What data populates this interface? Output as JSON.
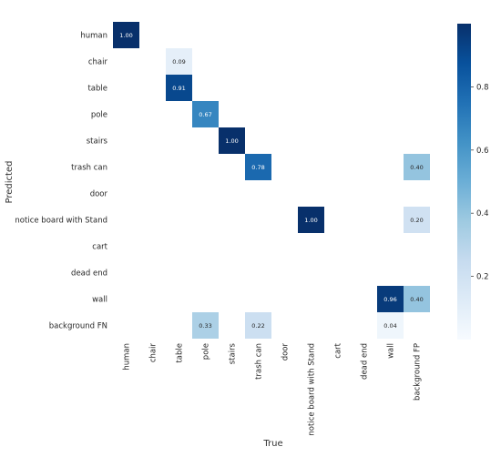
{
  "chart_data": {
    "type": "heatmap",
    "xlabel": "True",
    "ylabel": "Predicted",
    "x_categories": [
      "human",
      "chair",
      "table",
      "pole",
      "stairs",
      "trash can",
      "door",
      "notice board with Stand",
      "cart",
      "dead end",
      "wall",
      "background FP"
    ],
    "y_categories": [
      "human",
      "chair",
      "table",
      "pole",
      "stairs",
      "trash can",
      "door",
      "notice board with Stand",
      "cart",
      "dead end",
      "wall",
      "background FN"
    ],
    "cells": [
      {
        "row": 0,
        "col": 0,
        "value": 1.0,
        "label": "1.00"
      },
      {
        "row": 1,
        "col": 2,
        "value": 0.09,
        "label": "0.09"
      },
      {
        "row": 2,
        "col": 2,
        "value": 0.91,
        "label": "0.91"
      },
      {
        "row": 3,
        "col": 3,
        "value": 0.67,
        "label": "0.67"
      },
      {
        "row": 4,
        "col": 4,
        "value": 1.0,
        "label": "1.00"
      },
      {
        "row": 5,
        "col": 5,
        "value": 0.78,
        "label": "0.78"
      },
      {
        "row": 5,
        "col": 11,
        "value": 0.4,
        "label": "0.40"
      },
      {
        "row": 7,
        "col": 7,
        "value": 1.0,
        "label": "1.00"
      },
      {
        "row": 7,
        "col": 11,
        "value": 0.2,
        "label": "0.20"
      },
      {
        "row": 10,
        "col": 10,
        "value": 0.96,
        "label": "0.96"
      },
      {
        "row": 10,
        "col": 11,
        "value": 0.4,
        "label": "0.40"
      },
      {
        "row": 11,
        "col": 3,
        "value": 0.33,
        "label": "0.33"
      },
      {
        "row": 11,
        "col": 5,
        "value": 0.22,
        "label": "0.22"
      },
      {
        "row": 11,
        "col": 10,
        "value": 0.04,
        "label": "0.04"
      }
    ],
    "colorbar": {
      "colormap": "Blues",
      "range": [
        0.0,
        1.0
      ],
      "ticks": [
        0.2,
        0.4,
        0.6,
        0.8
      ],
      "tick_labels": [
        "0.2",
        "0.4",
        "0.6",
        "0.8"
      ]
    },
    "grid": false
  }
}
